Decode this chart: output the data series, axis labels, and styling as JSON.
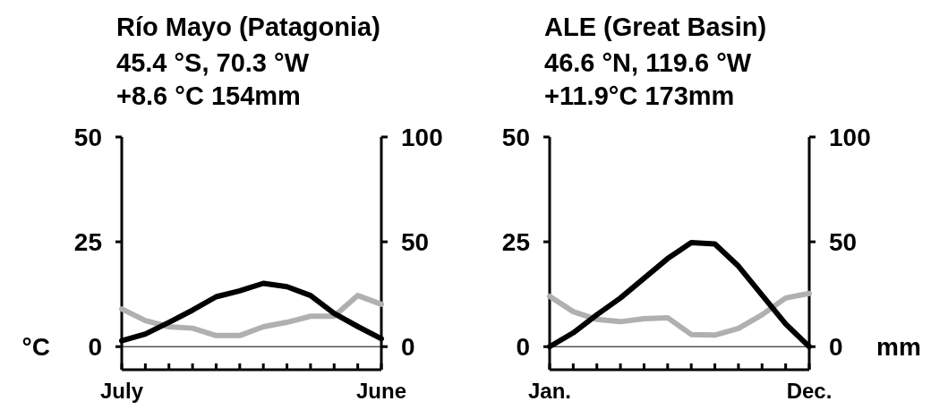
{
  "chart_data": [
    {
      "type": "line",
      "title": "Río Mayo (Patagonia)",
      "subtitle": "45.4 °S, 70.3 °W",
      "annotations": [
        "+8.6 °C   154mm"
      ],
      "ylabel": "°C",
      "categories": [
        "July",
        null,
        null,
        null,
        null,
        null,
        null,
        null,
        null,
        null,
        null,
        "June"
      ],
      "series": [
        {
          "color": "#000000",
          "values": [
            1.4,
            3.0,
            5.8,
            8.7,
            11.9,
            13.3,
            15.1,
            14.3,
            12.2,
            7.9,
            4.8,
            1.9
          ]
        },
        {
          "color": "#b0b0b0",
          "axis": "y2",
          "values": [
            18,
            12.4,
            9.5,
            8.8,
            5.3,
            5.3,
            9.5,
            11.6,
            14.5,
            14.5,
            24.4,
            20.2
          ]
        }
      ],
      "ylim": [
        -5.5,
        50
      ],
      "yticks": [
        0,
        25,
        50
      ],
      "y2lim": [
        -11,
        100
      ],
      "y2ticks": [
        0,
        50,
        100
      ],
      "ref_lines": [
        {
          "axis": "y",
          "value": 0,
          "color": "#000000"
        }
      ]
    },
    {
      "type": "line",
      "title": "ALE (Great Basin)",
      "subtitle": "46.6 °N, 119.6 °W",
      "annotations": [
        "+11.9°C   173mm"
      ],
      "y2label": "mm",
      "categories": [
        "Jan.",
        null,
        null,
        null,
        null,
        null,
        null,
        null,
        null,
        null,
        null,
        "Dec."
      ],
      "series": [
        {
          "color": "#000000",
          "values": [
            0,
            3.3,
            7.6,
            11.6,
            16.3,
            21.0,
            24.8,
            24.5,
            19.2,
            12.3,
            5.4,
            0
          ]
        },
        {
          "color": "#b0b0b0",
          "axis": "y2",
          "values": [
            24,
            16.7,
            13,
            11.9,
            13.3,
            13.8,
            5.8,
            5.5,
            8.7,
            15.2,
            23.2,
            25.4
          ]
        }
      ],
      "ylim": [
        -5.5,
        50
      ],
      "yticks": [
        0,
        25,
        50
      ],
      "y2lim": [
        -11,
        100
      ],
      "y2ticks": [
        0,
        50,
        100
      ],
      "ref_lines": [
        {
          "axis": "y",
          "value": 0,
          "color": "#000000"
        }
      ]
    }
  ]
}
